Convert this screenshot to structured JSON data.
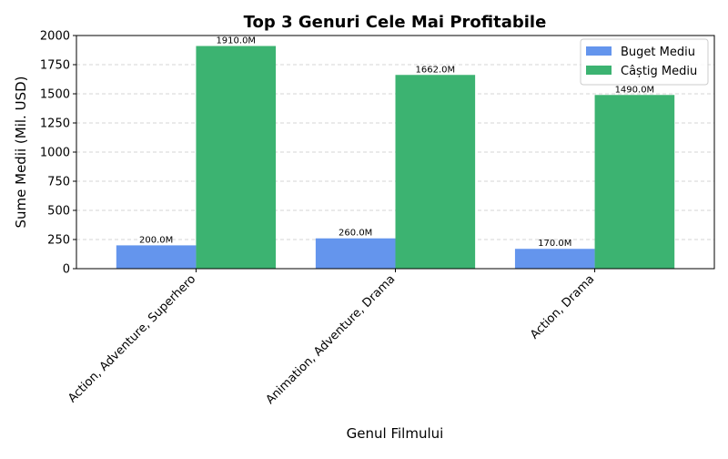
{
  "chart_data": {
    "type": "bar",
    "title": "Top 3 Genuri Cele Mai Profitabile",
    "xlabel": "Genul Filmului",
    "ylabel": "Sume Medii (Mil. USD)",
    "categories": [
      "Action, Adventure, Superhero",
      "Animation, Adventure, Drama",
      "Action, Drama"
    ],
    "series": [
      {
        "name": "Buget Mediu",
        "values": [
          200.0,
          260.0,
          170.0
        ],
        "color": "#6495ED",
        "labels": [
          "200.0M",
          "260.0M",
          "170.0M"
        ]
      },
      {
        "name": "Câștig Mediu",
        "values": [
          1910.0,
          1662.0,
          1490.0
        ],
        "color": "#3CB371",
        "labels": [
          "1910.0M",
          "1662.0M",
          "1490.0M"
        ]
      }
    ],
    "ylim": [
      0,
      2000
    ],
    "yticks": [
      0,
      250,
      500,
      750,
      1000,
      1250,
      1500,
      1750,
      2000
    ],
    "grid": "y, dashed",
    "legend": "top-right"
  }
}
